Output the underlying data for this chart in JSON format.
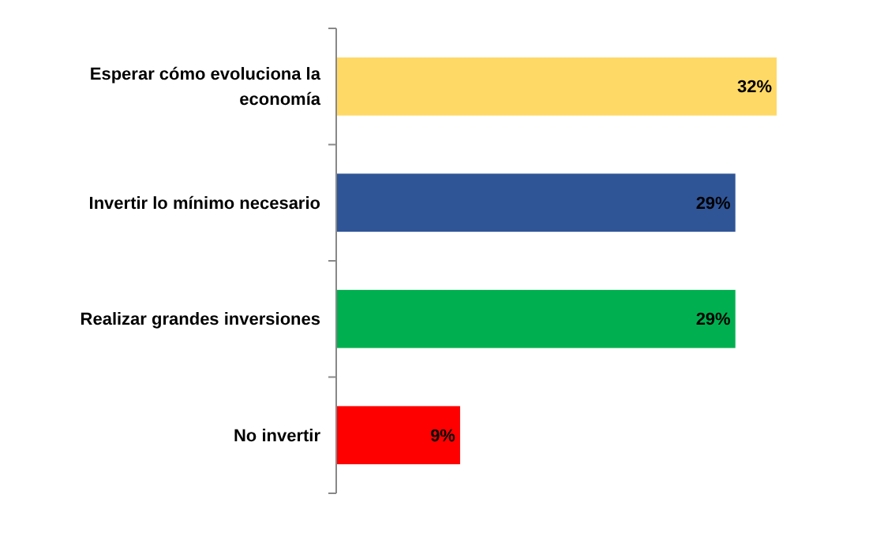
{
  "chart_data": {
    "type": "bar",
    "orientation": "horizontal",
    "categories": [
      "Esperar cómo evoluciona la economía",
      "Invertir lo mínimo necesario",
      "Realizar grandes inversiones",
      "No invertir"
    ],
    "values": [
      32,
      29,
      29,
      9
    ],
    "colors": [
      "#ffd966",
      "#2f5597",
      "#00b050",
      "#ff0000"
    ],
    "value_labels": [
      "32%",
      "29%",
      "29%",
      "9%"
    ]
  }
}
